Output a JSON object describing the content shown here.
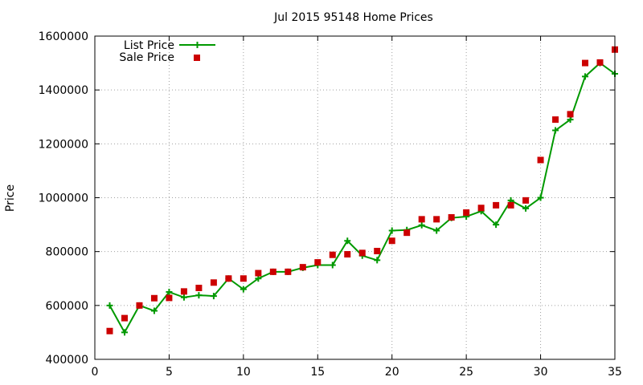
{
  "chart_data": {
    "type": "line",
    "title": "Jul 2015 95148 Home Prices",
    "ylabel": "Price",
    "xlabel": "",
    "xlim": [
      0,
      35
    ],
    "ylim": [
      400000,
      1600000
    ],
    "x_ticks": [
      0,
      5,
      10,
      15,
      20,
      25,
      30,
      35
    ],
    "y_ticks": [
      400000,
      600000,
      800000,
      1000000,
      1200000,
      1400000,
      1600000
    ],
    "grid": true,
    "legend": "top-left",
    "x": [
      1,
      2,
      3,
      4,
      5,
      6,
      7,
      8,
      9,
      10,
      11,
      12,
      13,
      14,
      15,
      16,
      17,
      18,
      19,
      20,
      21,
      22,
      23,
      24,
      25,
      26,
      27,
      28,
      29,
      30,
      31,
      32,
      33,
      34,
      35
    ],
    "series": [
      {
        "name": "List Price",
        "style": "line-with-plus-markers",
        "color": "#009900",
        "values": [
          600000,
          500000,
          600000,
          580000,
          650000,
          630000,
          638000,
          635000,
          700000,
          660000,
          700000,
          725000,
          725000,
          740000,
          750000,
          750000,
          840000,
          785000,
          768000,
          878000,
          880000,
          898000,
          878000,
          925000,
          930000,
          950000,
          900000,
          990000,
          960000,
          1000000,
          1250000,
          1290000,
          1450000,
          1500000,
          1460000
        ]
      },
      {
        "name": "Sale Price",
        "style": "square-markers",
        "color": "#cc0000",
        "values": [
          505000,
          553000,
          600000,
          627000,
          628000,
          652000,
          665000,
          685000,
          700000,
          700000,
          720000,
          725000,
          725000,
          742000,
          760000,
          788000,
          790000,
          795000,
          802000,
          840000,
          870000,
          920000,
          920000,
          927000,
          945000,
          962000,
          972000,
          972000,
          990000,
          1140000,
          1290000,
          1310000,
          1500000,
          1502000,
          1550000
        ]
      }
    ]
  }
}
